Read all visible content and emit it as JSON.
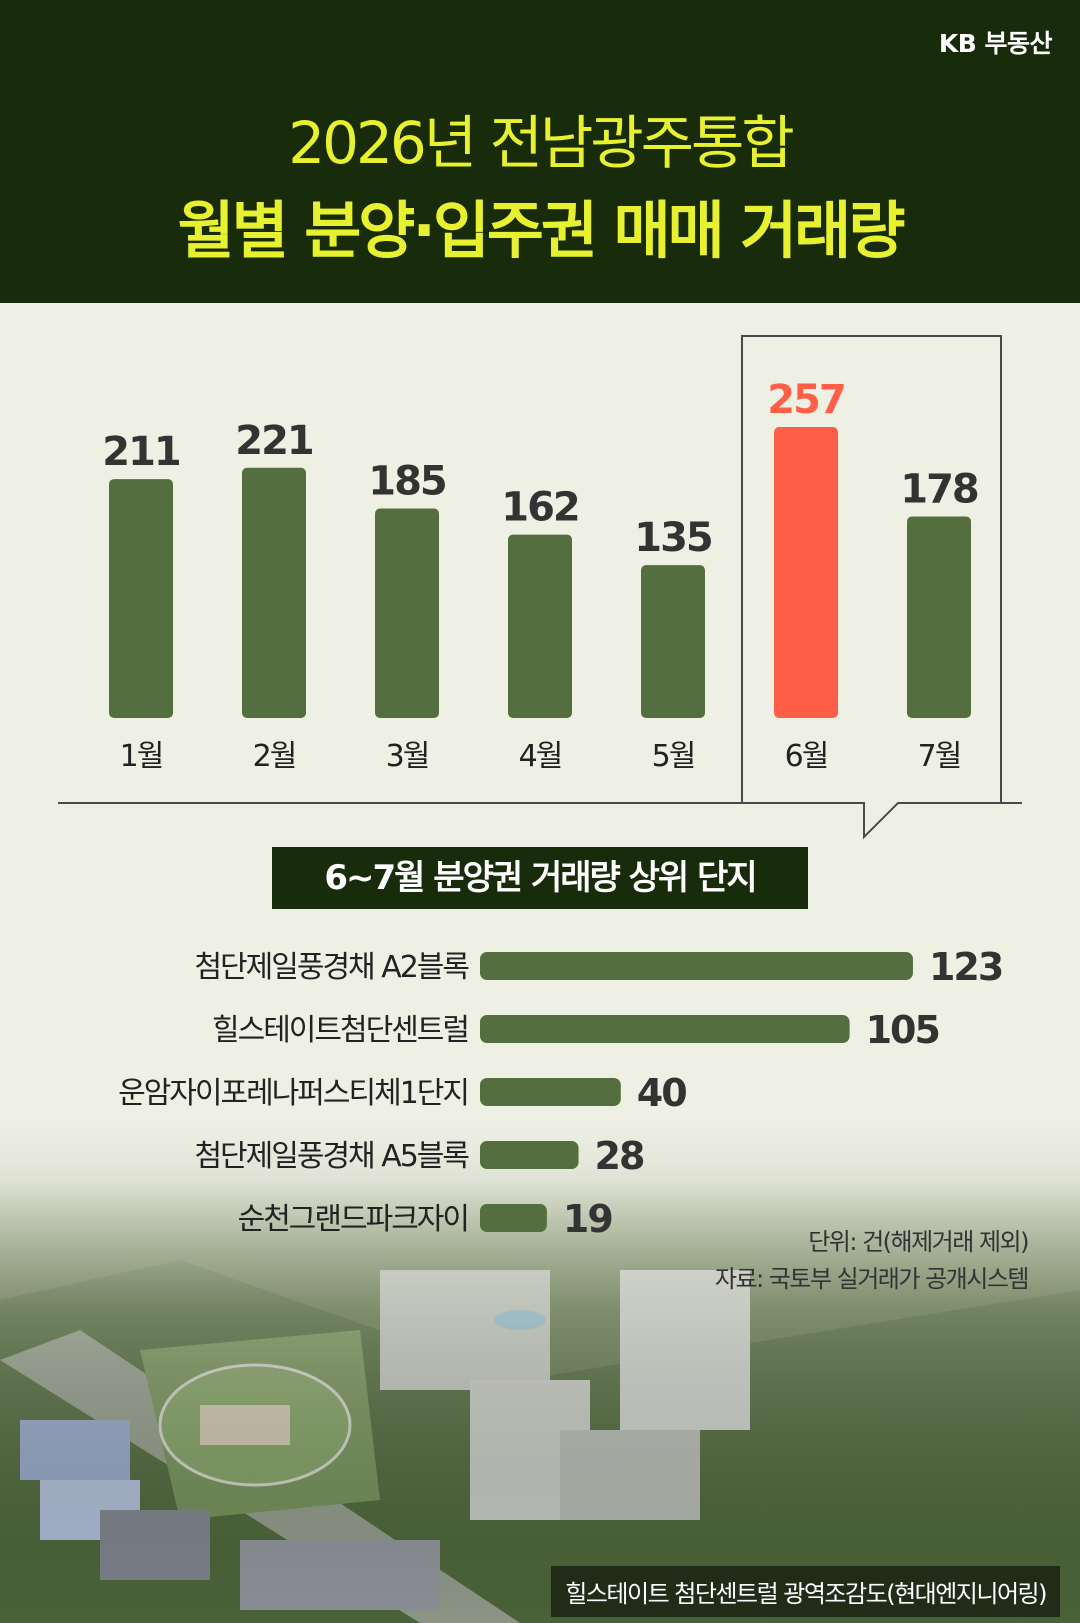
{
  "brand": "KB 부동산",
  "title_line1": "2026년 전남광주통합",
  "title_line2": "월별 분양·입주권 매매 거래량",
  "subtitle": "6~7월 분양권 거래량 상위 단지",
  "unit_note": "단위: 건(해제거래 제외)",
  "source_note": "자료: 국토부 실거래가 공개시스템",
  "photo_caption": "힐스테이트 첨단센트럴 광역조감도(현대엔지니어링)",
  "colors": {
    "bar": "#556e3f",
    "highlight": "#ff5f47",
    "header_bg": "#182c0c",
    "title": "#e8f12f"
  },
  "chart_data": [
    {
      "type": "bar",
      "categories": [
        "1월",
        "2월",
        "3월",
        "4월",
        "5월",
        "6월",
        "7월"
      ],
      "values": [
        211,
        221,
        185,
        162,
        135,
        257,
        178
      ],
      "highlight": "6월",
      "ylim": [
        0,
        257
      ],
      "grid": false
    },
    {
      "type": "bar",
      "orientation": "horizontal",
      "categories": [
        "첨단제일풍경채 A2블록",
        "힐스테이트첨단센트럴",
        "운암자이포레나퍼스티체1단지",
        "첨단제일풍경채 A5블록",
        "순천그랜드파크자이"
      ],
      "values": [
        123,
        105,
        40,
        28,
        19
      ],
      "grid": false
    }
  ]
}
